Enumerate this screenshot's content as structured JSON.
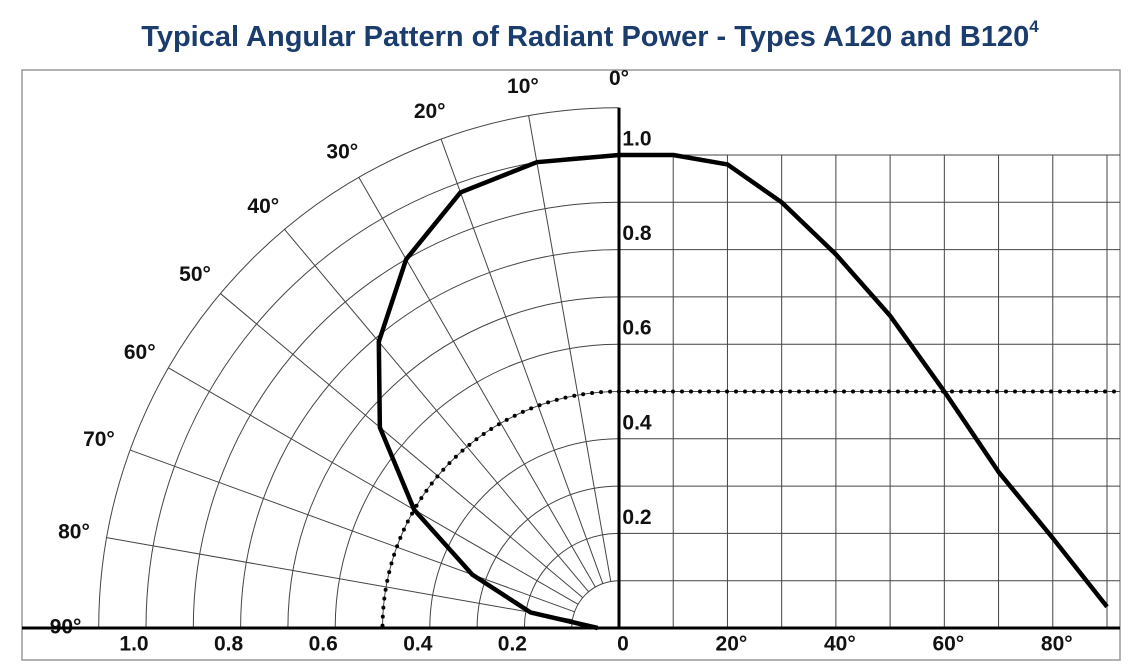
{
  "chart_data": {
    "type": "line",
    "title": "Typical Angular Pattern of Radiant Power - Types A120 and B120",
    "title_note": "4",
    "x": [
      0,
      10,
      20,
      30,
      40,
      50,
      60,
      70,
      80,
      90
    ],
    "series": [
      {
        "color": "#000000",
        "values": [
          1.0,
          1.0,
          0.98,
          0.9,
          0.79,
          0.66,
          0.5,
          0.33,
          0.19,
          0.045
        ]
      }
    ],
    "half_power": 0.5,
    "xlim": [
      0,
      90
    ],
    "ylim": [
      0,
      1.1
    ],
    "xticks": [
      {
        "value": 0,
        "label": "0"
      },
      {
        "value": 20,
        "label": "20°"
      },
      {
        "value": 40,
        "label": "40°"
      },
      {
        "value": 60,
        "label": "60°"
      },
      {
        "value": 80,
        "label": "80°"
      }
    ],
    "xgrid": [
      10,
      20,
      30,
      40,
      50,
      60,
      70,
      80,
      90
    ],
    "yticks": [
      {
        "value": 1,
        "label": "1.0"
      },
      0.8,
      0.6,
      0.4,
      0.2
    ],
    "ygrid": [
      0.1,
      0.2,
      0.3,
      0.4,
      0.5,
      0.6,
      0.7,
      0.8,
      0.9,
      1.0
    ],
    "r_ticks": [
      {
        "value": 1,
        "label": "1.0"
      },
      0.8,
      0.6,
      0.4,
      0.2
    ],
    "polar_rings": [
      0.1,
      0.2,
      0.3,
      0.4,
      0.5,
      0.6,
      0.7,
      0.8,
      0.9,
      1.0,
      1.1
    ],
    "angle_ticks": [
      {
        "value": 0,
        "label": "0°"
      },
      {
        "value": 10,
        "label": "10°"
      },
      {
        "value": 20,
        "label": "20°"
      },
      {
        "value": 30,
        "label": "30°"
      },
      {
        "value": 40,
        "label": "40°"
      },
      {
        "value": 50,
        "label": "50°"
      },
      {
        "value": 60,
        "label": "60°"
      },
      {
        "value": 70,
        "label": "70°"
      },
      {
        "value": 80,
        "label": "80°"
      },
      {
        "value": 90,
        "label": "90°"
      }
    ]
  }
}
